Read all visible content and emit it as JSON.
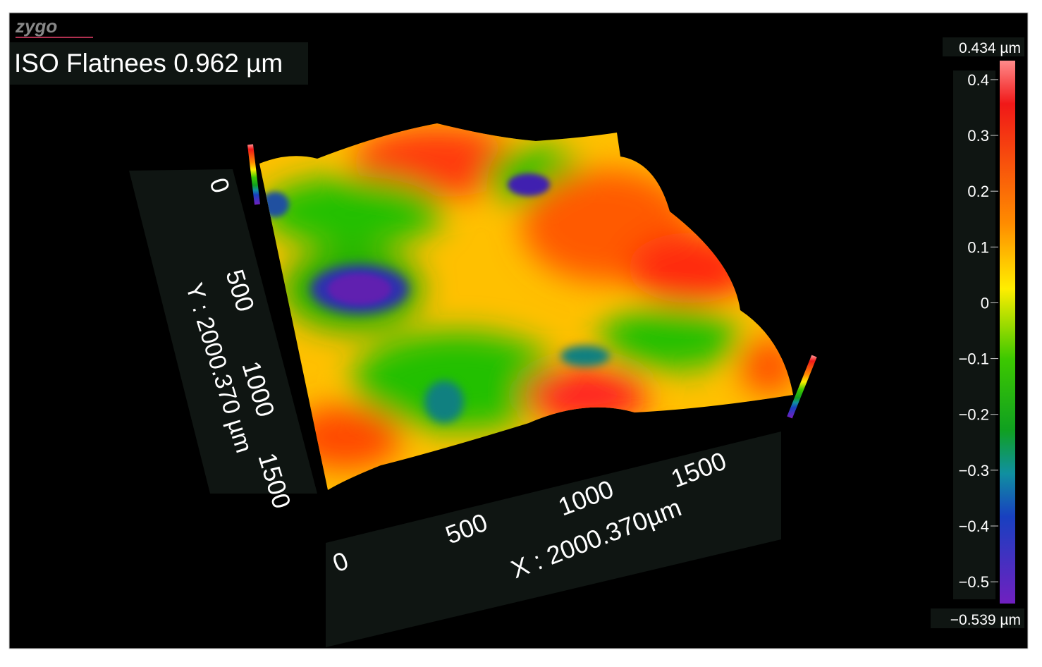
{
  "logo": "zygo",
  "title": "ISO Flatnees 0.962 µm",
  "colorbar": {
    "max": {
      "value": 0.434,
      "label": "0.434 µm"
    },
    "min": {
      "value": -0.539,
      "label": "−0.539 µm"
    },
    "ticks": [
      0.4,
      0.3,
      0.2,
      0.1,
      0,
      {
        "value": -0.1,
        "label": "−0.1"
      },
      {
        "value": -0.2,
        "label": "−0.2"
      },
      {
        "value": -0.3,
        "label": "−0.3"
      },
      {
        "value": -0.4,
        "label": "−0.4"
      },
      {
        "value": -0.5,
        "label": "−0.5"
      }
    ]
  },
  "x_axis": {
    "label": "X : 2000.370µm",
    "ticks": [
      0,
      500,
      1000,
      1500
    ]
  },
  "y_axis": {
    "label": "Y : 2000.370 µm",
    "ticks": [
      0,
      500,
      1000,
      1500
    ]
  }
}
